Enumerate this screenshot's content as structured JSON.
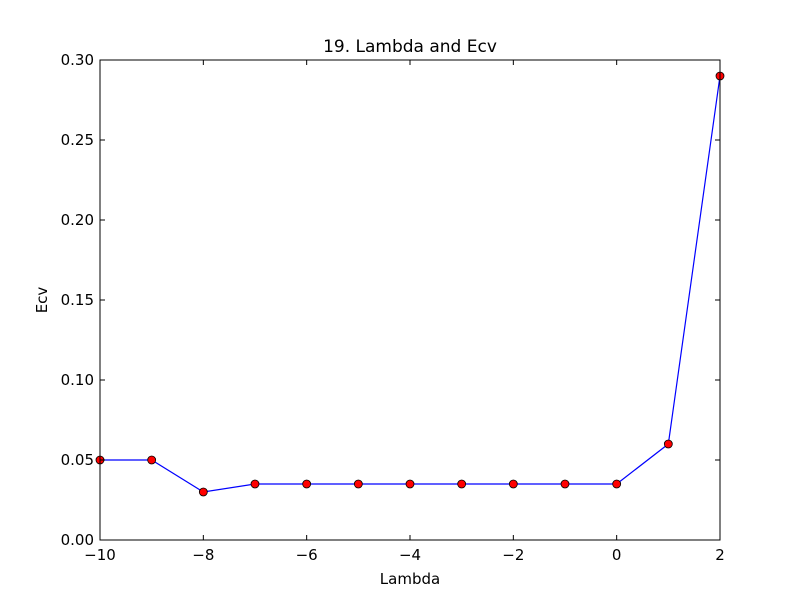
{
  "chart_data": {
    "type": "line",
    "title": "19. Lambda and Ecv",
    "xlabel": "Lambda",
    "ylabel": "Ecv",
    "xlim": [
      -10,
      2
    ],
    "ylim": [
      0.0,
      0.3
    ],
    "x_ticks": [
      -10,
      -8,
      -6,
      -4,
      -2,
      0,
      2
    ],
    "x_tick_labels": [
      "−10",
      "−8",
      "−6",
      "−4",
      "−2",
      "0",
      "2"
    ],
    "y_ticks": [
      0.0,
      0.05,
      0.1,
      0.15,
      0.2,
      0.25,
      0.3
    ],
    "y_tick_labels": [
      "0.00",
      "0.05",
      "0.10",
      "0.15",
      "0.20",
      "0.25",
      "0.30"
    ],
    "grid": false,
    "series": [
      {
        "line_color": "#0000ff",
        "marker_color": "#ff0000",
        "x": [
          -10,
          -9,
          -8,
          -7,
          -6,
          -5,
          -4,
          -3,
          -2,
          -1,
          0,
          1,
          2
        ],
        "y": [
          0.05,
          0.05,
          0.03,
          0.035,
          0.035,
          0.035,
          0.035,
          0.035,
          0.035,
          0.035,
          0.035,
          0.06,
          0.29
        ]
      }
    ]
  }
}
